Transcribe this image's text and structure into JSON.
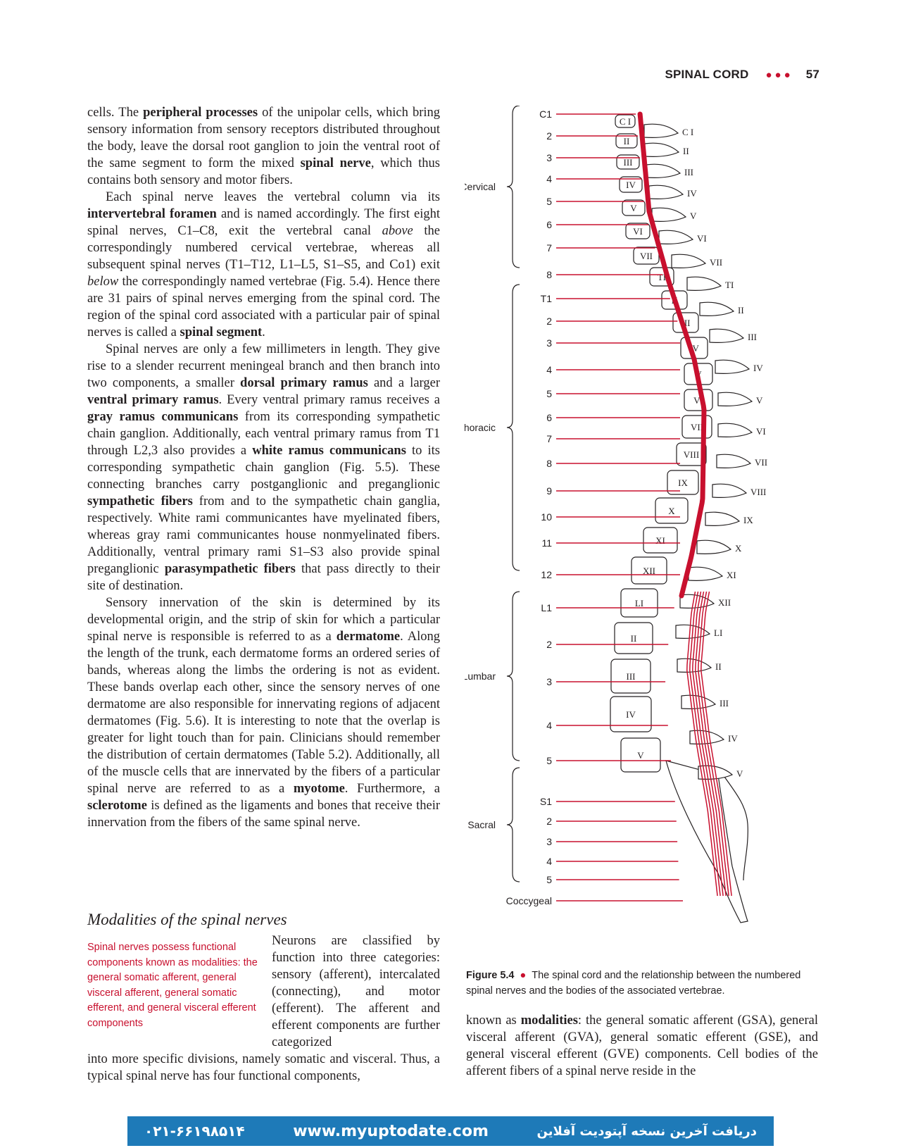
{
  "header": {
    "title": "SPINAL CORD",
    "dots": "●●●",
    "page_number": "57"
  },
  "left_column": {
    "p1": "cells. The <b>peripheral processes</b> of the unipolar cells, which bring sensory information from sensory receptors distributed throughout the body, leave the dorsal root ganglion to join the ventral root of the same segment to form the mixed <b>spinal nerve</b>, which thus contains both sensory and motor fibers.",
    "p2": "Each spinal nerve leaves the vertebral column via its <b>intervertebral foramen</b> and is named accordingly. The first eight spinal nerves, C1–C8, exit the vertebral canal <i>above</i> the correspondingly numbered cervical vertebrae, whereas all subsequent spinal nerves (T1–T12, L1–L5, S1–S5, and Co1) exit <i>below</i> the correspondingly named vertebrae (Fig. 5.4). Hence there are 31 pairs of spinal nerves emerging from the spinal cord. The region of the spinal cord associated with a particular pair of spinal nerves is called a <b>spinal segment</b>.",
    "p3": "Spinal nerves are only a few millimeters in length. They give rise to a slender recurrent meningeal branch and then branch into two components, a smaller <b>dorsal primary ramus</b> and a larger <b>ventral primary ramus</b>. Every ventral primary ramus receives a <b>gray ramus communicans</b> from its corresponding sympathetic chain ganglion. Additionally, each ventral primary ramus from T1 through L2,3 also provides a <b>white ramus communicans</b> to its corresponding sympathetic chain ganglion (Fig. 5.5). These connecting branches carry postganglionic and preganglionic <b>sympathetic fibers</b> from and to the sympathetic chain ganglia, respectively. White rami communicantes have myelinated fibers, whereas gray rami communicantes house nonmyelinated fibers. Additionally, ventral primary rami S1–S3 also provide spinal preganglionic <b>parasympathetic fibers</b> that pass directly to their site of destination.",
    "p4": "Sensory innervation of the skin is determined by its developmental origin, and the strip of skin for which a particular spinal nerve is responsible is referred to as a <b>dermatome</b>. Along the length of the trunk, each dermatome forms an ordered series of bands, whereas along the limbs the ordering is not as evident. These bands overlap each other, since the sensory nerves of one dermatome are also responsible for innervating regions of adjacent dermatomes (Fig. 5.6). It is interesting to note that the overlap is greater for light touch than for pain. Clinicians should remember the distribution of certain dermatomes (Table 5.2). Additionally, all of the muscle cells that are innervated by the fibers of a particular spinal nerve are referred to as a <b>myotome</b>. Furthermore, a <b>sclerotome</b> is defined as the ligaments and bones that receive their innervation from the fibers of the same spinal nerve."
  },
  "section": {
    "title": "Modalities of the spinal nerves",
    "margin_note": "Spinal nerves possess functional components known as modalities: the general somatic afferent, general visceral afferent, general somatic efferent, and general visceral efferent components",
    "para_a": "Neurons are classified by function into three categories: sensory (afferent), intercalated (connecting), and motor (efferent). The afferent and efferent components are further categorized",
    "para_b": "into more specific divisions, namely somatic and visceral. Thus, a typical spinal nerve has four functional components,"
  },
  "figure": {
    "regions": [
      "Cervical",
      "Thoracic",
      "Lumbar",
      "Sacral",
      "Coccygeal"
    ],
    "nerve_labels": [
      "C1",
      "2",
      "3",
      "4",
      "5",
      "6",
      "7",
      "8",
      "T1",
      "2",
      "3",
      "4",
      "5",
      "6",
      "7",
      "8",
      "9",
      "10",
      "11",
      "12",
      "L1",
      "2",
      "3",
      "4",
      "5",
      "S1",
      "2",
      "3",
      "4",
      "5"
    ],
    "body_labels": [
      "C I",
      "II",
      "III",
      "IV",
      "V",
      "VI",
      "VII",
      "TI",
      "II",
      "III",
      "IV",
      "V",
      "VI",
      "VII",
      "VIII",
      "IX",
      "X",
      "XI",
      "XII",
      "LI",
      "II",
      "III",
      "IV",
      "V"
    ],
    "process_labels": [
      "C I",
      "II",
      "III",
      "IV",
      "V",
      "VI",
      "VII",
      "TI",
      "II",
      "III",
      "IV",
      "V",
      "VI",
      "VII",
      "VIII",
      "IX",
      "X",
      "XI",
      "XII",
      "LI",
      "II",
      "III",
      "IV",
      "V"
    ],
    "cord_color": "#c8102e",
    "caption_label": "Figure 5.4",
    "caption_text": "The spinal cord and the relationship between the numbered spinal nerves and the bodies of the associated vertebrae."
  },
  "right_column": {
    "text": "known as <b>modalities</b>: the general somatic afferent (GSA), general visceral afferent (GVA), general somatic efferent (GSE), and general visceral efferent (GVE) components. Cell bodies of the afferent fibers of a spinal nerve reside in the"
  },
  "footer": {
    "phone": "۰۲۱-۶۶۱۹۸۵۱۴",
    "url": "www.myuptodate.com",
    "persian": "دریافت آخرین نسخه آپتودیت آفلاین"
  }
}
